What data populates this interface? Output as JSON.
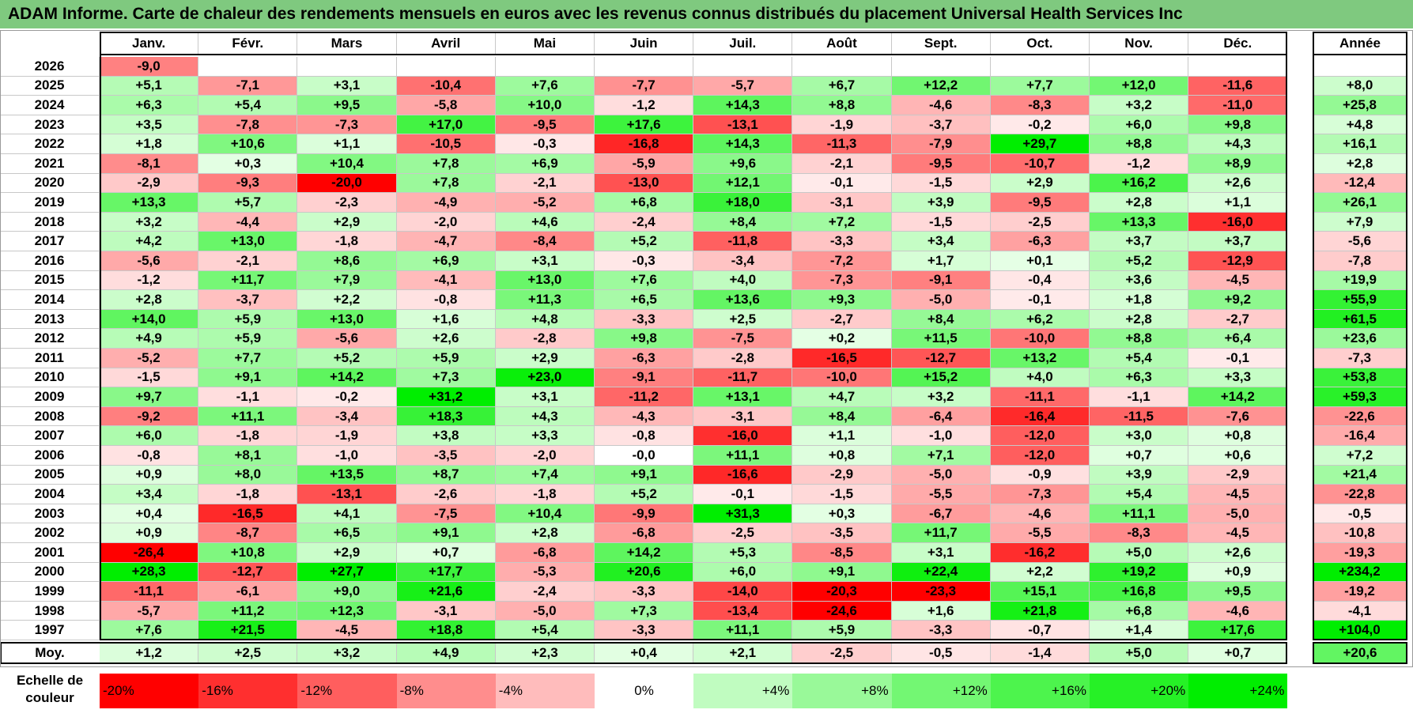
{
  "title": "ADAM Informe. Carte de chaleur des rendements mensuels en euros avec les revenus connus distribués du placement Universal Health Services Inc",
  "colors": {
    "title_bg": "#7fc97f",
    "neg_max": "#ff0000",
    "pos_max": "#00ee00",
    "neutral": "#ffffff"
  },
  "chart_data": {
    "type": "heatmap",
    "title": "ADAM Informe. Carte de chaleur des rendements mensuels en euros avec les revenus connus distribués du placement Universal Health Services Inc",
    "months": [
      "Janv.",
      "Févr.",
      "Mars",
      "Avril",
      "Mai",
      "Juin",
      "Juil.",
      "Août",
      "Sept.",
      "Oct.",
      "Nov.",
      "Déc."
    ],
    "year_header": "Année",
    "avg_label": "Moy.",
    "rows": [
      {
        "year": "2026",
        "values": [
          "-9,0",
          "",
          "",
          "",
          "",
          "",
          "",
          "",
          "",
          "",
          "",
          ""
        ],
        "annual": ""
      },
      {
        "year": "2025",
        "values": [
          "+5,1",
          "-7,1",
          "+3,1",
          "-10,4",
          "+7,6",
          "-7,7",
          "-5,7",
          "+6,7",
          "+12,2",
          "+7,7",
          "+12,0",
          "-11,6"
        ],
        "annual": "+8,0"
      },
      {
        "year": "2024",
        "values": [
          "+6,3",
          "+5,4",
          "+9,5",
          "-5,8",
          "+10,0",
          "-1,2",
          "+14,3",
          "+8,8",
          "-4,6",
          "-8,3",
          "+3,2",
          "-11,0"
        ],
        "annual": "+25,8"
      },
      {
        "year": "2023",
        "values": [
          "+3,5",
          "-7,8",
          "-7,3",
          "+17,0",
          "-9,5",
          "+17,6",
          "-13,1",
          "-1,9",
          "-3,7",
          "-0,2",
          "+6,0",
          "+9,8"
        ],
        "annual": "+4,8"
      },
      {
        "year": "2022",
        "values": [
          "+1,8",
          "+10,6",
          "+1,1",
          "-10,5",
          "-0,3",
          "-16,8",
          "+14,3",
          "-11,3",
          "-7,9",
          "+29,7",
          "+8,8",
          "+4,3"
        ],
        "annual": "+16,1"
      },
      {
        "year": "2021",
        "values": [
          "-8,1",
          "+0,3",
          "+10,4",
          "+7,8",
          "+6,9",
          "-5,9",
          "+9,6",
          "-2,1",
          "-9,5",
          "-10,7",
          "-1,2",
          "+8,9"
        ],
        "annual": "+2,8"
      },
      {
        "year": "2020",
        "values": [
          "-2,9",
          "-9,3",
          "-20,0",
          "+7,8",
          "-2,1",
          "-13,0",
          "+12,1",
          "-0,1",
          "-1,5",
          "+2,9",
          "+16,2",
          "+2,6"
        ],
        "annual": "-12,4"
      },
      {
        "year": "2019",
        "values": [
          "+13,3",
          "+5,7",
          "-2,3",
          "-4,9",
          "-5,2",
          "+6,8",
          "+18,0",
          "-3,1",
          "+3,9",
          "-9,5",
          "+2,8",
          "+1,1"
        ],
        "annual": "+26,1"
      },
      {
        "year": "2018",
        "values": [
          "+3,2",
          "-4,4",
          "+2,9",
          "-2,0",
          "+4,6",
          "-2,4",
          "+8,4",
          "+7,2",
          "-1,5",
          "-2,5",
          "+13,3",
          "-16,0"
        ],
        "annual": "+7,9"
      },
      {
        "year": "2017",
        "values": [
          "+4,2",
          "+13,0",
          "-1,8",
          "-4,7",
          "-8,4",
          "+5,2",
          "-11,8",
          "-3,3",
          "+3,4",
          "-6,3",
          "+3,7",
          "+3,7"
        ],
        "annual": "-5,6"
      },
      {
        "year": "2016",
        "values": [
          "-5,6",
          "-2,1",
          "+8,6",
          "+6,9",
          "+3,1",
          "-0,3",
          "-3,4",
          "-7,2",
          "+1,7",
          "+0,1",
          "+5,2",
          "-12,9"
        ],
        "annual": "-7,8"
      },
      {
        "year": "2015",
        "values": [
          "-1,2",
          "+11,7",
          "+7,9",
          "-4,1",
          "+13,0",
          "+7,6",
          "+4,0",
          "-7,3",
          "-9,1",
          "-0,4",
          "+3,6",
          "-4,5"
        ],
        "annual": "+19,9"
      },
      {
        "year": "2014",
        "values": [
          "+2,8",
          "-3,7",
          "+2,2",
          "-0,8",
          "+11,3",
          "+6,5",
          "+13,6",
          "+9,3",
          "-5,0",
          "-0,1",
          "+1,8",
          "+9,2"
        ],
        "annual": "+55,9"
      },
      {
        "year": "2013",
        "values": [
          "+14,0",
          "+5,9",
          "+13,0",
          "+1,6",
          "+4,8",
          "-3,3",
          "+2,5",
          "-2,7",
          "+8,4",
          "+6,2",
          "+2,8",
          "-2,7"
        ],
        "annual": "+61,5"
      },
      {
        "year": "2012",
        "values": [
          "+4,9",
          "+5,9",
          "-5,6",
          "+2,6",
          "-2,8",
          "+9,8",
          "-7,5",
          "+0,2",
          "+11,5",
          "-10,0",
          "+8,8",
          "+6,4"
        ],
        "annual": "+23,6"
      },
      {
        "year": "2011",
        "values": [
          "-5,2",
          "+7,7",
          "+5,2",
          "+5,9",
          "+2,9",
          "-6,3",
          "-2,8",
          "-16,5",
          "-12,7",
          "+13,2",
          "+5,4",
          "-0,1"
        ],
        "annual": "-7,3"
      },
      {
        "year": "2010",
        "values": [
          "-1,5",
          "+9,1",
          "+14,2",
          "+7,3",
          "+23,0",
          "-9,1",
          "-11,7",
          "-10,0",
          "+15,2",
          "+4,0",
          "+6,3",
          "+3,3"
        ],
        "annual": "+53,8"
      },
      {
        "year": "2009",
        "values": [
          "+9,7",
          "-1,1",
          "-0,2",
          "+31,2",
          "+3,1",
          "-11,2",
          "+13,1",
          "+4,7",
          "+3,2",
          "-11,1",
          "-1,1",
          "+14,2"
        ],
        "annual": "+59,3"
      },
      {
        "year": "2008",
        "values": [
          "-9,2",
          "+11,1",
          "-3,4",
          "+18,3",
          "+4,3",
          "-4,3",
          "-3,1",
          "+8,4",
          "-6,4",
          "-16,4",
          "-11,5",
          "-7,6"
        ],
        "annual": "-22,6"
      },
      {
        "year": "2007",
        "values": [
          "+6,0",
          "-1,8",
          "-1,9",
          "+3,8",
          "+3,3",
          "-0,8",
          "-16,0",
          "+1,1",
          "-1,0",
          "-12,0",
          "+3,0",
          "+0,8"
        ],
        "annual": "-16,4"
      },
      {
        "year": "2006",
        "values": [
          "-0,8",
          "+8,1",
          "-1,0",
          "-3,5",
          "-2,0",
          "-0,0",
          "+11,1",
          "+0,8",
          "+7,1",
          "-12,0",
          "+0,7",
          "+0,6"
        ],
        "annual": "+7,2"
      },
      {
        "year": "2005",
        "values": [
          "+0,9",
          "+8,0",
          "+13,5",
          "+8,7",
          "+7,4",
          "+9,1",
          "-16,6",
          "-2,9",
          "-5,0",
          "-0,9",
          "+3,9",
          "-2,9"
        ],
        "annual": "+21,4"
      },
      {
        "year": "2004",
        "values": [
          "+3,4",
          "-1,8",
          "-13,1",
          "-2,6",
          "-1,8",
          "+5,2",
          "-0,1",
          "-1,5",
          "-5,5",
          "-7,3",
          "+5,4",
          "-4,5"
        ],
        "annual": "-22,8"
      },
      {
        "year": "2003",
        "values": [
          "+0,4",
          "-16,5",
          "+4,1",
          "-7,5",
          "+10,4",
          "-9,9",
          "+31,3",
          "+0,3",
          "-6,7",
          "-4,6",
          "+11,1",
          "-5,0"
        ],
        "annual": "-0,5"
      },
      {
        "year": "2002",
        "values": [
          "+0,9",
          "-8,7",
          "+6,5",
          "+9,1",
          "+2,8",
          "-6,8",
          "-2,5",
          "-3,5",
          "+11,7",
          "-5,5",
          "-8,3",
          "-4,5"
        ],
        "annual": "-10,8"
      },
      {
        "year": "2001",
        "values": [
          "-26,4",
          "+10,8",
          "+2,9",
          "+0,7",
          "-6,8",
          "+14,2",
          "+5,3",
          "-8,5",
          "+3,1",
          "-16,2",
          "+5,0",
          "+2,6"
        ],
        "annual": "-19,3"
      },
      {
        "year": "2000",
        "values": [
          "+28,3",
          "-12,7",
          "+27,7",
          "+17,7",
          "-5,3",
          "+20,6",
          "+6,0",
          "+9,1",
          "+22,4",
          "+2,2",
          "+19,2",
          "+0,9"
        ],
        "annual": "+234,2"
      },
      {
        "year": "1999",
        "values": [
          "-11,1",
          "-6,1",
          "+9,0",
          "+21,6",
          "-2,4",
          "-3,3",
          "-14,0",
          "-20,3",
          "-23,3",
          "+15,1",
          "+16,8",
          "+9,5"
        ],
        "annual": "-19,2"
      },
      {
        "year": "1998",
        "values": [
          "-5,7",
          "+11,2",
          "+12,3",
          "-3,1",
          "-5,0",
          "+7,3",
          "-13,4",
          "-24,6",
          "+1,6",
          "+21,8",
          "+6,8",
          "-4,6"
        ],
        "annual": "-4,1"
      },
      {
        "year": "1997",
        "values": [
          "+7,6",
          "+21,5",
          "-4,5",
          "+18,8",
          "+5,4",
          "-3,3",
          "+11,1",
          "+5,9",
          "-3,3",
          "-0,7",
          "+1,4",
          "+17,6"
        ],
        "annual": "+104,0"
      }
    ],
    "averages": [
      "+1,2",
      "+2,5",
      "+3,2",
      "+4,9",
      "+2,3",
      "+0,4",
      "+2,1",
      "-2,5",
      "-0,5",
      "-1,4",
      "+5,0",
      "+0,7"
    ],
    "average_annual": "+20,6",
    "scale_label": "Echelle de couleur",
    "scale": [
      "-20%",
      "-16%",
      "-12%",
      "-8%",
      "-4%",
      "0%",
      "+4%",
      "+8%",
      "+12%",
      "+16%",
      "+20%",
      "+24%"
    ],
    "scale_values": [
      -20,
      -16,
      -12,
      -8,
      -4,
      0,
      4,
      8,
      12,
      16,
      20,
      24
    ],
    "color_range": [
      -20,
      24
    ]
  }
}
